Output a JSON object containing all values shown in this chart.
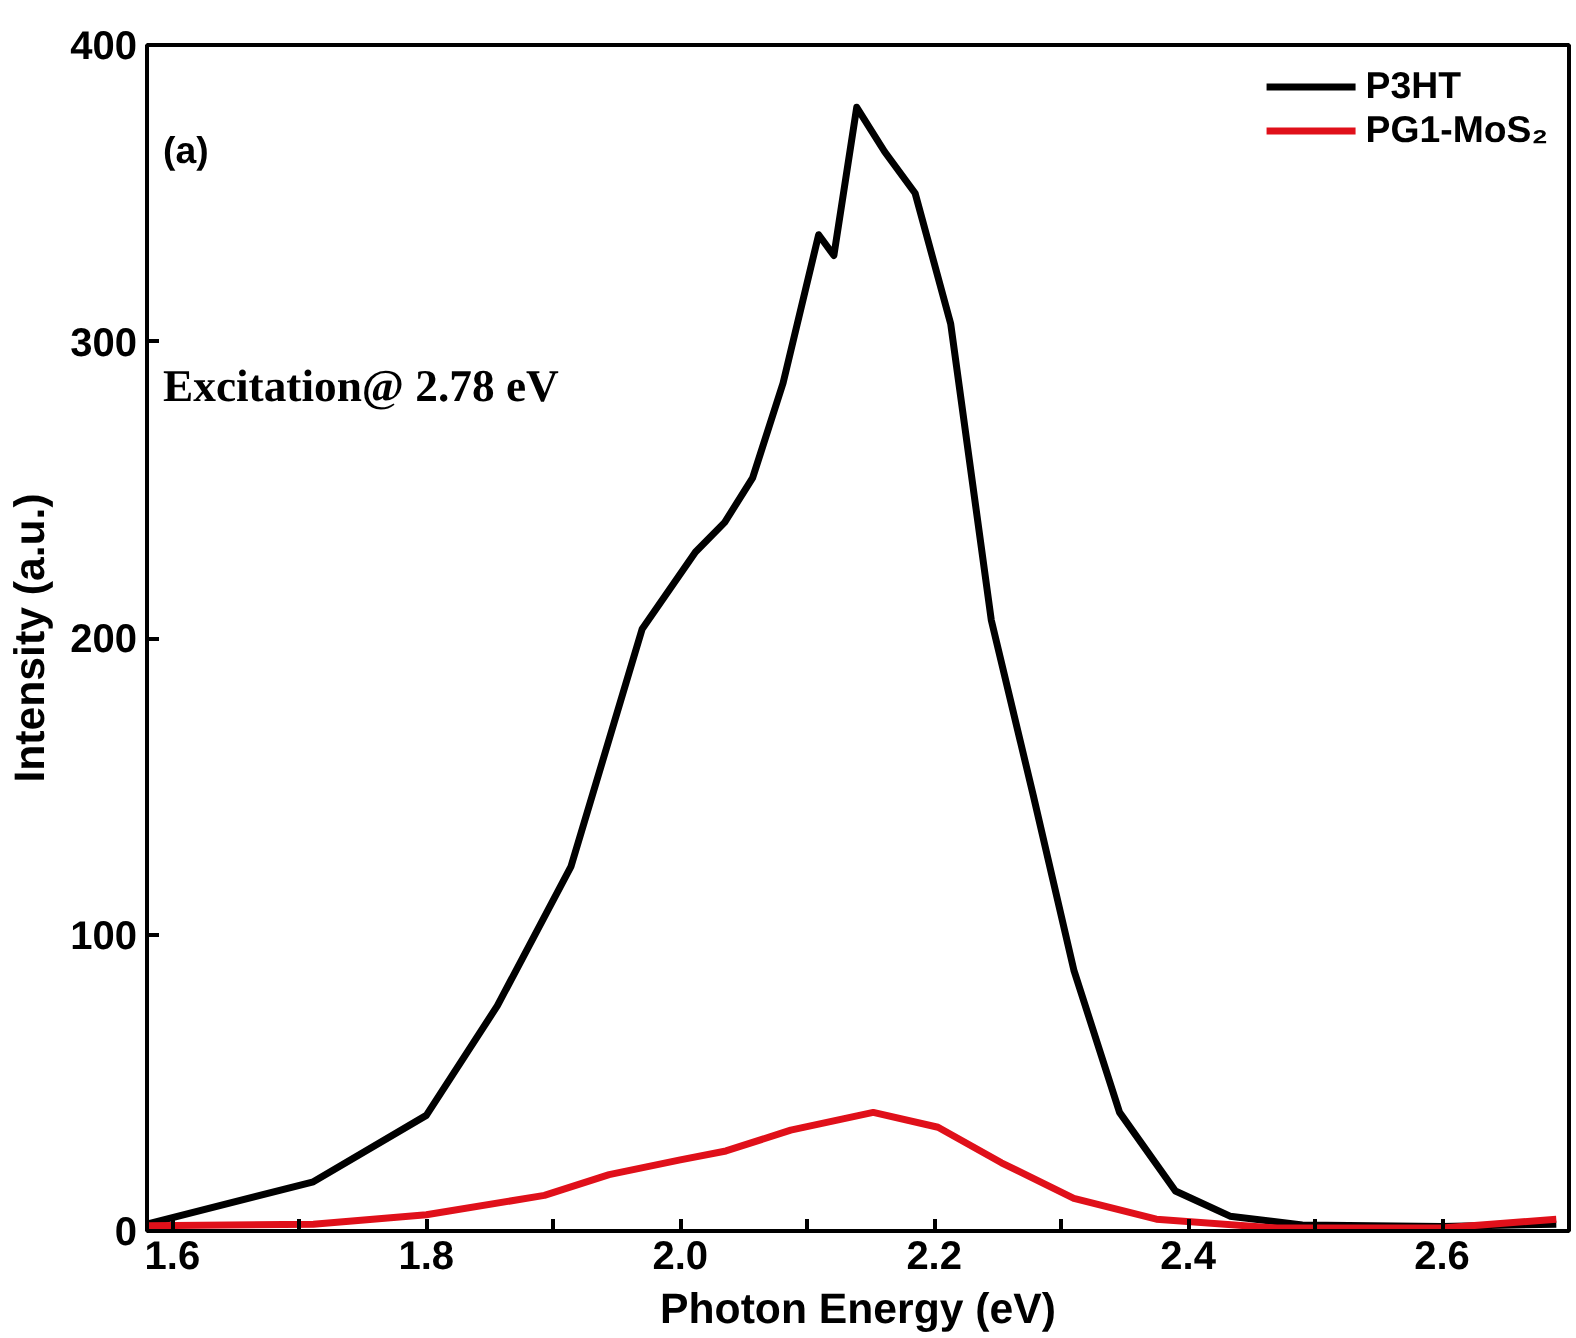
{
  "chart_data": {
    "type": "line",
    "xlabel": "Photon Energy (eV)",
    "ylabel": "Intensity (a.u.)",
    "annotations": [
      "(a)",
      "Excitation@ 2.78 eV"
    ],
    "xlim": [
      1.58,
      2.7
    ],
    "ylim": [
      0,
      400
    ],
    "xticks": [
      1.6,
      {
        "value": 1.7,
        "label": null
      },
      1.8,
      {
        "value": 1.9,
        "label": null
      },
      {
        "value": 2,
        "label": "2.0"
      },
      {
        "value": 2.1,
        "label": null
      },
      2.2,
      {
        "value": 2.3,
        "label": null
      },
      2.4,
      {
        "value": 2.5,
        "label": null
      },
      2.6
    ],
    "yticks": [
      0,
      100,
      200,
      300,
      400
    ],
    "grid": false,
    "legend": "top right",
    "line_style": "solid",
    "series": [
      {
        "name": "P3HT",
        "color": "#000000",
        "x": [
          1.58,
          1.711,
          1.8,
          1.856,
          1.914,
          1.97,
          2.012,
          2.035,
          2.057,
          2.081,
          2.109,
          2.121,
          2.139,
          2.161,
          2.185,
          2.213,
          2.245,
          2.278,
          2.31,
          2.346,
          2.39,
          2.433,
          2.49,
          2.6,
          2.69
        ],
        "values": [
          2.3,
          16.6,
          39,
          76,
          123,
          203,
          229,
          239,
          254,
          286,
          336,
          329,
          379,
          364,
          350,
          306,
          206,
          147,
          88,
          40,
          13.5,
          5,
          2,
          1.5,
          2.3
        ]
      },
      {
        "name": "PG1-MoS₂",
        "color": "#e0101a",
        "x": [
          1.58,
          1.711,
          1.8,
          1.893,
          1.944,
          2.0,
          2.036,
          2.087,
          2.152,
          2.203,
          2.253,
          2.31,
          2.375,
          2.47,
          2.6,
          2.69
        ],
        "values": [
          1.8,
          2.3,
          5.5,
          12,
          19,
          24,
          27,
          34,
          40,
          35,
          23,
          11,
          4,
          1,
          1,
          4
        ]
      }
    ]
  }
}
